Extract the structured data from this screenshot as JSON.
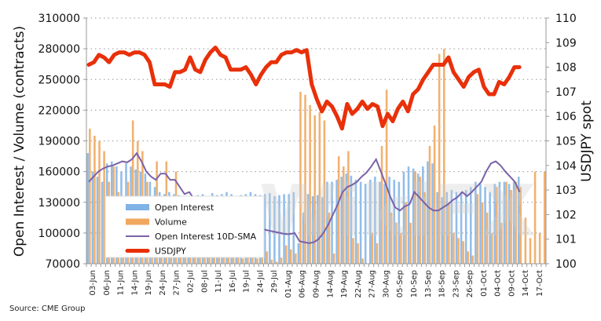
{
  "chart_data": {
    "type": "bar",
    "title": "",
    "source": "Source: CME Group",
    "ylabel": "Open Interest / Volume (contracts)",
    "y2label": "USDJPY spot",
    "ylim": [
      70000,
      310000
    ],
    "y2lim": [
      100,
      110
    ],
    "yticks": [
      70000,
      100000,
      130000,
      160000,
      190000,
      220000,
      250000,
      280000,
      310000
    ],
    "y2ticks": [
      100,
      101,
      102,
      103,
      104,
      105,
      106,
      107,
      108,
      109,
      110
    ],
    "grid": true,
    "legend_position": "bottom-left",
    "x_tick_labels": [
      "03-Jun",
      "06-Jun",
      "11-Jun",
      "14-Jun",
      "19-Jun",
      "24-Jun",
      "27-Jun",
      "02-Jul",
      "08-Jul",
      "11-Jul",
      "16-Jul",
      "19-Jul",
      "24-Jul",
      "29-Jul",
      "01-Aug",
      "06-Aug",
      "09-Aug",
      "14-Aug",
      "19-Aug",
      "22-Aug",
      "27-Aug",
      "30-Aug",
      "05-Sep",
      "10-Sep",
      "13-Sep",
      "18-Sep",
      "23-Sep",
      "26-Sep",
      "01-Oct",
      "04-Oct",
      "09-Oct",
      "14-Oct",
      "17-Oct"
    ],
    "n_slots": 96,
    "series": [
      {
        "name": "Open Interest",
        "type": "bar",
        "color": "#7fb2e5",
        "values": [
          178000,
          160000,
          155000,
          150000,
          168000,
          170000,
          165000,
          160000,
          168000,
          165000,
          162000,
          160000,
          158000,
          150000,
          145000,
          140000,
          138000,
          140000,
          138000,
          137000,
          136000,
          135000,
          134000,
          137000,
          138000,
          136000,
          139000,
          137000,
          138000,
          140000,
          138000,
          136000,
          137000,
          138000,
          140000,
          138000,
          137000,
          138000,
          139000,
          136000,
          137000,
          138000,
          138000,
          140000,
          90000,
          120000,
          138000,
          136000,
          137000,
          135000,
          150000,
          150000,
          152000,
          155000,
          158000,
          156000,
          152000,
          150000,
          148000,
          152000,
          155000,
          150000,
          148000,
          155000,
          152000,
          150000,
          160000,
          165000,
          163000,
          158000,
          165000,
          170000,
          168000,
          140000,
          135000,
          140000,
          142000,
          140000,
          140000,
          142000,
          145000,
          150000,
          148000,
          145000,
          140000,
          148000,
          150000,
          150000,
          148000,
          150000,
          155000
        ]
      },
      {
        "name": "Volume",
        "type": "bar",
        "color": "#f0a860",
        "values": [
          202000,
          195000,
          190000,
          180000,
          150000,
          165000,
          140000,
          130000,
          150000,
          210000,
          190000,
          180000,
          150000,
          90000,
          170000,
          135000,
          170000,
          115000,
          160000,
          110000,
          100000,
          80000,
          90000,
          95000,
          85000,
          90000,
          92000,
          80000,
          88000,
          85000,
          90000,
          85000,
          75000,
          82000,
          80000,
          75000,
          78000,
          82000,
          74000,
          72000,
          76000,
          88000,
          84000,
          80000,
          238000,
          235000,
          225000,
          215000,
          218000,
          210000,
          120000,
          80000,
          175000,
          165000,
          180000,
          95000,
          90000,
          75000,
          70000,
          100000,
          90000,
          185000,
          240000,
          120000,
          110000,
          100000,
          130000,
          110000,
          160000,
          155000,
          140000,
          185000,
          205000,
          275000,
          280000,
          130000,
          100000,
          95000,
          92000,
          82000,
          78000,
          138000,
          130000,
          120000,
          100000,
          145000,
          110000,
          150000,
          142000,
          150000,
          145000,
          115000,
          95000,
          160000,
          100000,
          160000
        ]
      },
      {
        "name": "Open Interest 10D-SMA",
        "type": "line",
        "color": "#7a62a8",
        "values": [
          150000,
          155000,
          160000,
          163000,
          165000,
          166000,
          168000,
          170000,
          169000,
          172000,
          178000,
          170000,
          160000,
          155000,
          152000,
          158000,
          158000,
          152000,
          152000,
          145000,
          138000,
          140000,
          133000,
          130000,
          128000,
          126000,
          124000,
          122000,
          120000,
          118000,
          116000,
          114000,
          112000,
          110000,
          108000,
          106000,
          104000,
          103000,
          102000,
          101000,
          100000,
          99000,
          99000,
          100000,
          92000,
          91000,
          90000,
          91000,
          94000,
          100000,
          108000,
          118000,
          128000,
          140000,
          145000,
          147000,
          150000,
          155000,
          159000,
          165000,
          172000,
          160000,
          148000,
          135000,
          125000,
          122000,
          126000,
          128000,
          140000,
          135000,
          130000,
          125000,
          122000,
          122000,
          125000,
          128000,
          132000,
          135000,
          140000,
          136000,
          140000,
          145000,
          150000,
          160000,
          168000,
          170000,
          166000,
          160000,
          155000,
          150000,
          140000,
          125000,
          115000,
          116000,
          114000,
          118000,
          122000,
          124000,
          126000,
          125000,
          124000,
          126000
        ]
      },
      {
        "name": "USDJPY",
        "type": "line",
        "color": "#e8300a",
        "values": [
          108.1,
          108.2,
          108.5,
          108.4,
          108.2,
          108.5,
          108.6,
          108.6,
          108.5,
          108.6,
          108.6,
          108.5,
          108.2,
          107.3,
          107.3,
          107.3,
          107.2,
          107.8,
          107.8,
          107.9,
          108.4,
          107.9,
          107.8,
          108.3,
          108.6,
          108.8,
          108.5,
          108.4,
          107.9,
          107.9,
          107.9,
          108.0,
          107.7,
          107.3,
          107.7,
          108.0,
          108.2,
          108.2,
          108.5,
          108.6,
          108.6,
          108.7,
          108.6,
          108.7,
          107.3,
          106.7,
          106.2,
          106.6,
          106.4,
          106.0,
          105.5,
          106.5,
          106.1,
          106.3,
          106.6,
          106.3,
          106.5,
          106.4,
          105.6,
          106.1,
          105.8,
          106.3,
          106.6,
          106.2,
          106.9,
          107.1,
          107.5,
          107.8,
          108.1,
          108.1,
          108.1,
          108.4,
          107.8,
          107.5,
          107.2,
          107.6,
          107.8,
          107.9,
          107.2,
          106.9,
          106.9,
          107.4,
          107.3,
          107.6,
          108.0,
          108.0
        ]
      }
    ]
  },
  "legend": {
    "items": [
      {
        "label": "Open Interest",
        "color": "#7fb2e5"
      },
      {
        "label": "Volume",
        "color": "#f0a860"
      },
      {
        "label": "Open Interest 10D-SMA",
        "color": "#7a62a8"
      },
      {
        "label": "USDJPY",
        "color": "#e8300a"
      }
    ]
  }
}
